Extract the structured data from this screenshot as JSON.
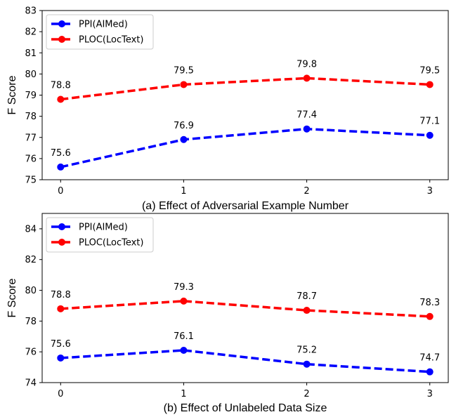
{
  "chart_data": [
    {
      "type": "line",
      "xlabel": "(a) Effect of Adversarial Example Number",
      "ylabel": "F Score",
      "x": [
        0,
        1,
        2,
        3
      ],
      "xlim": [
        -0.15,
        3.15
      ],
      "ylim": [
        75,
        83
      ],
      "yticks": [
        75,
        76,
        77,
        78,
        79,
        80,
        81,
        82,
        83
      ],
      "legend_position": "top-left",
      "grid": false,
      "series": [
        {
          "name": "PPI(AIMed)",
          "color": "#0000ff",
          "values": [
            75.6,
            76.9,
            77.4,
            77.1
          ],
          "labels": [
            "75.6",
            "76.9",
            "77.4",
            "77.1"
          ]
        },
        {
          "name": "PLOC(LocText)",
          "color": "#ff0000",
          "values": [
            78.8,
            79.5,
            79.8,
            79.5
          ],
          "labels": [
            "78.8",
            "79.5",
            "79.8",
            "79.5"
          ]
        }
      ]
    },
    {
      "type": "line",
      "xlabel": "(b) Effect of Unlabeled Data Size",
      "ylabel": "F Score",
      "x": [
        0,
        1,
        2,
        3
      ],
      "xlim": [
        -0.15,
        3.15
      ],
      "ylim": [
        74,
        85
      ],
      "yticks": [
        74,
        76,
        78,
        80,
        82,
        84
      ],
      "legend_position": "top-left",
      "grid": false,
      "series": [
        {
          "name": "PPI(AIMed)",
          "color": "#0000ff",
          "values": [
            75.6,
            76.1,
            75.2,
            74.7
          ],
          "labels": [
            "75.6",
            "76.1",
            "75.2",
            "74.7"
          ]
        },
        {
          "name": "PLOC(LocText)",
          "color": "#ff0000",
          "values": [
            78.8,
            79.3,
            78.7,
            78.3
          ],
          "labels": [
            "78.8",
            "79.3",
            "78.7",
            "78.3"
          ]
        }
      ]
    }
  ]
}
